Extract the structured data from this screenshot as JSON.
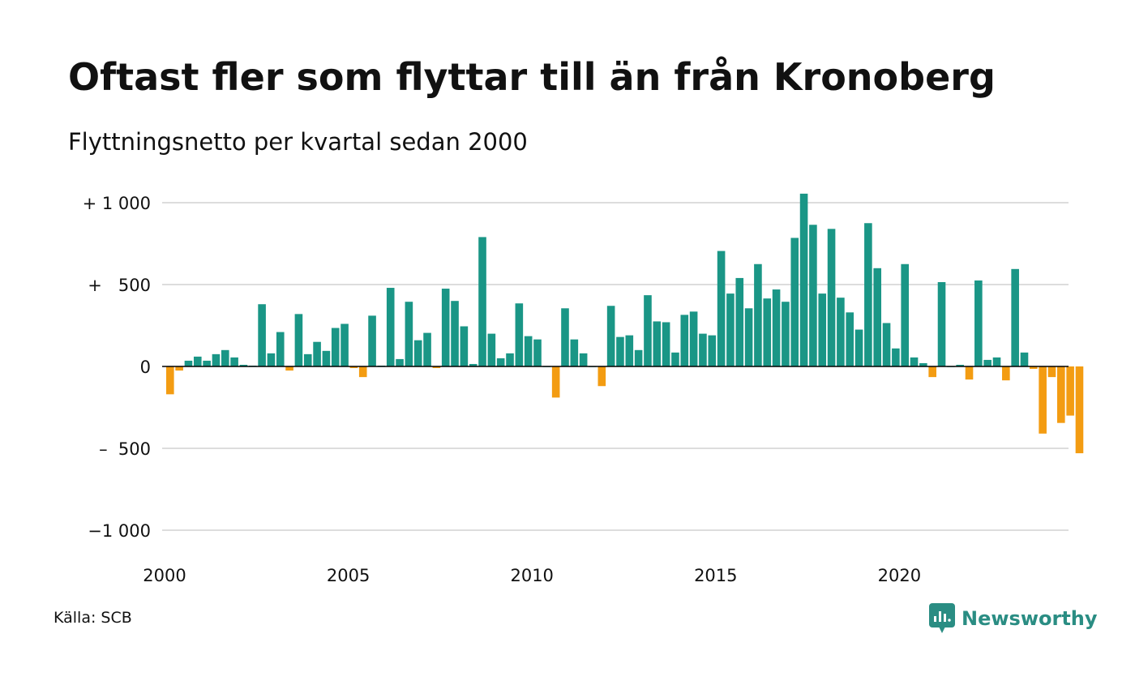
{
  "title": "Oftast fler som flyttar till än från Kronoberg",
  "subtitle": "Flyttningsnetto per kvartal sedan 2000",
  "source": "Källa: SCB",
  "brand": {
    "name": "Newsworthy",
    "icon": "newsworthy-logo-icon"
  },
  "colors": {
    "positive": "#1a9686",
    "negative": "#f39c12",
    "grid": "#dddddd",
    "baseline": "#000000",
    "text": "#111111",
    "brand": "#2a8d83"
  },
  "chart_data": {
    "type": "bar",
    "title": "Oftast fler som flyttar till än från Kronoberg",
    "subtitle": "Flyttningsnetto per kvartal sedan 2000",
    "xlabel": "",
    "ylabel": "",
    "ylim": [
      -1000,
      1000
    ],
    "y_ticks": [
      1000,
      500,
      0,
      -500,
      -1000
    ],
    "y_tick_labels": [
      "+ 1 000",
      "+   500",
      "0",
      "–  500",
      "−1 000"
    ],
    "x_tick_years": [
      2000,
      2005,
      2010,
      2015,
      2020
    ],
    "x_tick_labels": [
      "2000",
      "2005",
      "2010",
      "2015",
      "2020"
    ],
    "grid": true,
    "legend": false,
    "categories": [
      "2000K1",
      "2000K2",
      "2000K3",
      "2000K4",
      "2001K1",
      "2001K2",
      "2001K3",
      "2001K4",
      "2002K1",
      "2002K2",
      "2002K3",
      "2002K4",
      "2003K1",
      "2003K2",
      "2003K3",
      "2003K4",
      "2004K1",
      "2004K2",
      "2004K3",
      "2004K4",
      "2005K1",
      "2005K2",
      "2005K3",
      "2005K4",
      "2006K1",
      "2006K2",
      "2006K3",
      "2006K4",
      "2007K1",
      "2007K2",
      "2007K3",
      "2007K4",
      "2008K1",
      "2008K2",
      "2008K3",
      "2008K4",
      "2009K1",
      "2009K2",
      "2009K3",
      "2009K4",
      "2010K1",
      "2010K2",
      "2010K3",
      "2010K4",
      "2011K1",
      "2011K2",
      "2011K3",
      "2011K4",
      "2012K1",
      "2012K2",
      "2012K3",
      "2012K4",
      "2013K1",
      "2013K2",
      "2013K3",
      "2013K4",
      "2014K1",
      "2014K2",
      "2014K3",
      "2014K4",
      "2015K1",
      "2015K2",
      "2015K3",
      "2015K4",
      "2016K1",
      "2016K2",
      "2016K3",
      "2016K4",
      "2017K1",
      "2017K2",
      "2017K3",
      "2017K4",
      "2018K1",
      "2018K2",
      "2018K3",
      "2018K4",
      "2019K1",
      "2019K2",
      "2019K3",
      "2019K4",
      "2020K1",
      "2020K2",
      "2020K3",
      "2020K4",
      "2021K1",
      "2021K2",
      "2021K3",
      "2021K4",
      "2022K1",
      "2022K2",
      "2022K3",
      "2022K4",
      "2023K1",
      "2023K2",
      "2023K3",
      "2023K4",
      "2024K1",
      "2024K2",
      "2024K3",
      "2024K4"
    ],
    "values": [
      -170,
      -25,
      35,
      60,
      35,
      75,
      100,
      55,
      10,
      5,
      380,
      80,
      210,
      -25,
      320,
      75,
      150,
      95,
      235,
      260,
      -10,
      -65,
      310,
      5,
      480,
      45,
      395,
      160,
      205,
      -10,
      475,
      400,
      245,
      15,
      790,
      200,
      50,
      80,
      385,
      185,
      165,
      0,
      -190,
      355,
      165,
      80,
      0,
      -120,
      370,
      180,
      190,
      100,
      435,
      275,
      270,
      85,
      315,
      335,
      200,
      190,
      705,
      445,
      540,
      355,
      625,
      415,
      470,
      395,
      785,
      1055,
      865,
      445,
      840,
      420,
      330,
      225,
      875,
      600,
      265,
      110,
      625,
      55,
      20,
      -65,
      515,
      0,
      10,
      -80,
      525,
      40,
      55,
      -85,
      595,
      85,
      -15,
      -410,
      -65,
      -345,
      -300,
      -530
    ]
  }
}
